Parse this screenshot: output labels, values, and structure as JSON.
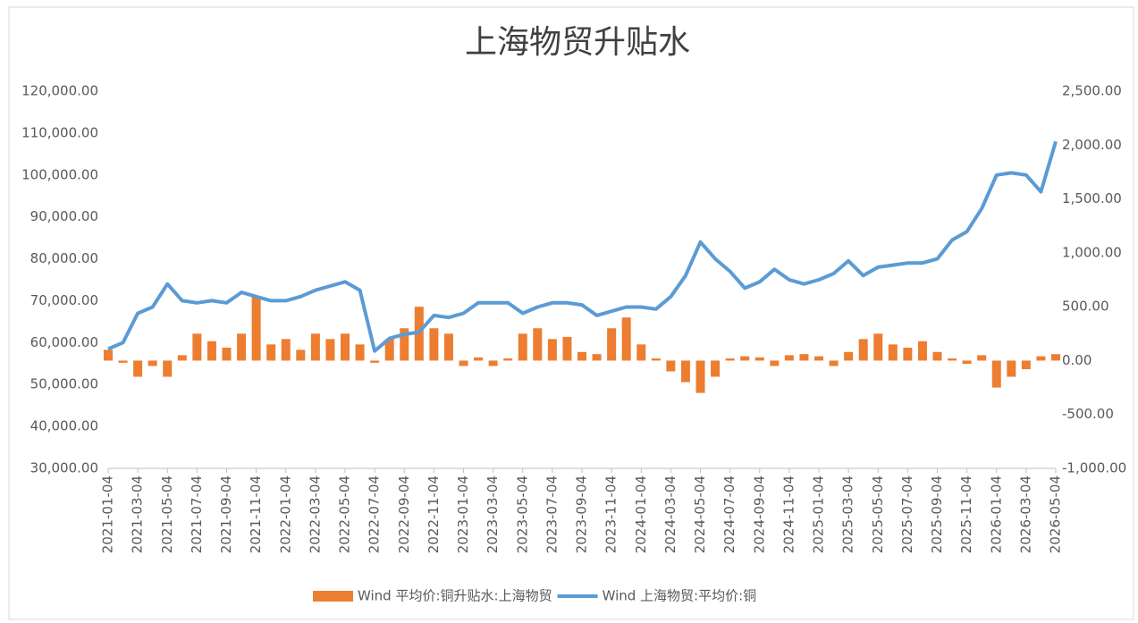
{
  "chart_data": {
    "type": "combo",
    "title": "上海物贸升贴水",
    "x": [
      "2021-01-04",
      "2021-02-04",
      "2021-03-04",
      "2021-04-04",
      "2021-05-04",
      "2021-06-04",
      "2021-07-04",
      "2021-08-04",
      "2021-09-04",
      "2021-10-04",
      "2021-11-04",
      "2021-12-04",
      "2022-01-04",
      "2022-02-04",
      "2022-03-04",
      "2022-04-04",
      "2022-05-04",
      "2022-06-04",
      "2022-07-04",
      "2022-08-04",
      "2022-09-04",
      "2022-10-04",
      "2022-11-04",
      "2022-12-04",
      "2023-01-04",
      "2023-02-04",
      "2023-03-04",
      "2023-04-04",
      "2023-05-04",
      "2023-06-04",
      "2023-07-04",
      "2023-08-04",
      "2023-09-04",
      "2023-10-04",
      "2023-11-04",
      "2023-12-04",
      "2024-01-04",
      "2024-02-04",
      "2024-03-04",
      "2024-04-04",
      "2024-05-04",
      "2024-06-04",
      "2024-07-04",
      "2024-08-04",
      "2024-09-04",
      "2024-10-04",
      "2024-11-04",
      "2024-12-04",
      "2025-01-04",
      "2025-02-04",
      "2025-03-04",
      "2025-04-04",
      "2025-05-04",
      "2025-06-04",
      "2025-07-04",
      "2025-08-04",
      "2025-09-04",
      "2025-10-04",
      "2025-11-04",
      "2025-12-04",
      "2026-01-04",
      "2026-02-04",
      "2026-03-04",
      "2026-04-04",
      "2026-05-04"
    ],
    "series": [
      {
        "name": "Wind 平均价:铜升贴水:上海物贸",
        "type": "bar",
        "axis": "y2",
        "color": "#ed7d31",
        "values": [
          100,
          -20,
          -150,
          -50,
          -150,
          50,
          250,
          180,
          120,
          250,
          600,
          150,
          200,
          100,
          250,
          200,
          250,
          150,
          -20,
          200,
          300,
          500,
          300,
          250,
          -50,
          30,
          -50,
          20,
          250,
          300,
          200,
          220,
          80,
          60,
          300,
          400,
          150,
          20,
          -100,
          -200,
          -300,
          -150,
          20,
          40,
          30,
          -50,
          50,
          60,
          40,
          -50,
          80,
          200,
          250,
          150,
          120,
          180,
          80,
          20,
          -30,
          50,
          -250,
          -150,
          -80,
          40,
          60
        ]
      },
      {
        "name": "Wind 上海物贸:平均价:铜",
        "type": "line",
        "color": "#5b9bd5",
        "values": [
          58500,
          60000,
          67000,
          68500,
          74000,
          70000,
          69500,
          70000,
          69500,
          72000,
          71000,
          70000,
          70000,
          71000,
          72500,
          73500,
          74500,
          72500,
          58000,
          61000,
          62000,
          62500,
          66500,
          66000,
          67000,
          69500,
          69500,
          69500,
          67000,
          68500,
          69500,
          69500,
          69000,
          66500,
          67500,
          68500,
          68500,
          68000,
          71000,
          76000,
          84000,
          80000,
          77000,
          73000,
          74500,
          77500,
          75000,
          74000,
          75000,
          76500,
          79500,
          76000,
          78000,
          78500,
          79000,
          79000,
          80000,
          84500,
          86500,
          92000,
          100000,
          100500,
          100000,
          96000,
          108000
        ]
      }
    ],
    "ylim": [
      30000,
      120000
    ],
    "yticks": [
      {
        "value": 30000,
        "label": "30,000.00"
      },
      {
        "value": 40000,
        "label": "40,000.00"
      },
      {
        "value": 50000,
        "label": "50,000.00"
      },
      {
        "value": 60000,
        "label": "60,000.00"
      },
      {
        "value": 70000,
        "label": "70,000.00"
      },
      {
        "value": 80000,
        "label": "80,000.00"
      },
      {
        "value": 90000,
        "label": "90,000.00"
      },
      {
        "value": 100000,
        "label": "100,000.00"
      },
      {
        "value": 110000,
        "label": "110,000.00"
      },
      {
        "value": 120000,
        "label": "120,000.00"
      }
    ],
    "y2lim": [
      -1000,
      2500
    ],
    "y2ticks": [
      {
        "value": -1000,
        "label": "-1,000.00"
      },
      {
        "value": -500,
        "label": "-500.00"
      },
      {
        "value": 0,
        "label": "0.00"
      },
      {
        "value": 500,
        "label": "500.00"
      },
      {
        "value": 1000,
        "label": "1,000.00"
      },
      {
        "value": 1500,
        "label": "1,500.00"
      },
      {
        "value": 2000,
        "label": "2,000.00"
      },
      {
        "value": 2500,
        "label": "2,500.00"
      }
    ],
    "legend": "bottom"
  }
}
